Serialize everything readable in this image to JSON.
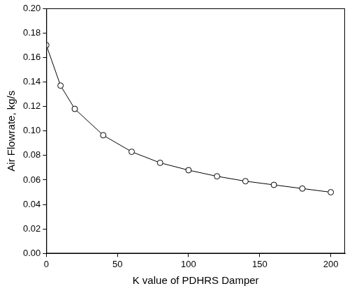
{
  "chart_data": {
    "type": "line",
    "x_label": "K value of PDHRS Damper",
    "y_label": "Air Flowrate, kg/s",
    "x": [
      0,
      10,
      20,
      40,
      60,
      80,
      100,
      120,
      140,
      160,
      180,
      200
    ],
    "values": [
      0.17,
      0.137,
      0.118,
      0.0965,
      0.083,
      0.074,
      0.068,
      0.063,
      0.059,
      0.056,
      0.053,
      0.05
    ],
    "color": "#000000",
    "marker": "circle",
    "line_style": "solid",
    "grid": false,
    "xlim": [
      0,
      210
    ],
    "xticks": [
      0,
      50,
      100,
      150,
      200
    ],
    "ylim": [
      0,
      0.2
    ],
    "yticks": [
      {
        "value": 0,
        "label": "0.00"
      },
      {
        "value": 0.02,
        "label": "0.02"
      },
      {
        "value": 0.04,
        "label": "0.04"
      },
      {
        "value": 0.06,
        "label": "0.06"
      },
      {
        "value": 0.08,
        "label": "0.08"
      },
      {
        "value": 0.1,
        "label": "0.10"
      },
      {
        "value": 0.12,
        "label": "0.12"
      },
      {
        "value": 0.14,
        "label": "0.14"
      },
      {
        "value": 0.16,
        "label": "0.16"
      },
      {
        "value": 0.18,
        "label": "0.18"
      },
      {
        "value": 0.2,
        "label": "0.20"
      }
    ]
  }
}
